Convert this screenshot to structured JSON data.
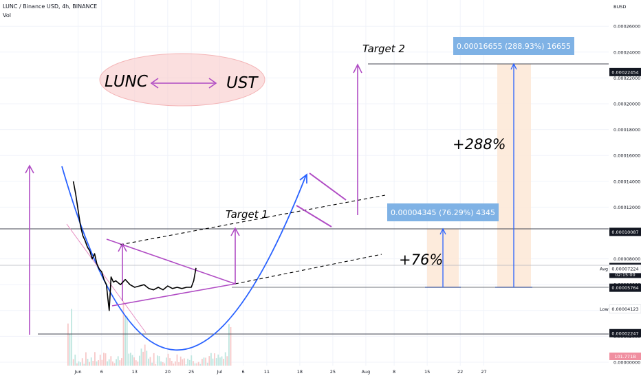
{
  "header": {
    "symbol_line": "LUNC / Binance USD, 4h, BINANCE",
    "volume_label": "Vol",
    "currency": "BUSD"
  },
  "chart_data": {
    "type": "line",
    "title": "LUNC / Binance USD, 4h, BINANCE",
    "xlabel": "",
    "ylabel": "BUSD",
    "ylim": [
      0,
      0.00027
    ],
    "y_ticks": [
      "0.00026000",
      "0.00024000",
      "0.00022000",
      "0.00020000",
      "0.00018000",
      "0.00016000",
      "0.00014000",
      "0.00012000",
      "0.00008000",
      "0.00006000",
      "0.00004000",
      "0.00002000",
      "0.00000000"
    ],
    "x_ticks": [
      "Jun",
      "6",
      "13",
      "20",
      "25",
      "Jul",
      "6",
      "11",
      "18",
      "25",
      "Aug",
      "8",
      "15",
      "22",
      "27"
    ],
    "x_tick_days": [
      1,
      6,
      13,
      20,
      25,
      31,
      36,
      41,
      48,
      55,
      62,
      68,
      75,
      82,
      87
    ],
    "price_series": {
      "name": "",
      "days": [
        0,
        0.5,
        1,
        1.5,
        2,
        2.5,
        3,
        3.5,
        4,
        4.5,
        5,
        5.5,
        6,
        6.5,
        7,
        7.3,
        7.6,
        8,
        8.5,
        9,
        10,
        11,
        12,
        13,
        14,
        15,
        16,
        17,
        18,
        19,
        20,
        21,
        22,
        23,
        24,
        25,
        25.5,
        26
      ],
      "prices": [
        0.00014,
        0.00013,
        0.000118,
        0.000106,
        9.8e-05,
        9.4e-05,
        8.9e-05,
        8.6e-05,
        8e-05,
        8.4e-05,
        7.6e-05,
        7.2e-05,
        7e-05,
        6.4e-05,
        6e-05,
        5e-05,
        4e-05,
        6.6e-05,
        6.2e-05,
        6.3e-05,
        6e-05,
        6.4e-05,
        6e-05,
        5.8e-05,
        5.9e-05,
        6e-05,
        5.7e-05,
        5.6e-05,
        5.8e-05,
        5.6e-05,
        5.9e-05,
        5.7e-05,
        5.8e-05,
        5.7e-05,
        5.8e-05,
        5.8e-05,
        6.3e-05,
        7.3e-05
      ]
    },
    "price_levels": [
      {
        "label": "0.00022454",
        "value": 0.00022454,
        "style": "dark"
      },
      {
        "label": "0.00010087",
        "value": 0.00010087,
        "style": "dark"
      },
      {
        "label": "0.00007366",
        "value": 7.366e-05,
        "style": "dark",
        "sub": "02:15:00"
      },
      {
        "label": "0.00007224",
        "value": 7.224e-05,
        "style": "light",
        "prefix": "Avg"
      },
      {
        "label": "0.00005764",
        "value": 5.764e-05,
        "style": "dark"
      },
      {
        "label": "0.00004123",
        "value": 4.123e-05,
        "style": "light",
        "prefix": "Low"
      },
      {
        "label": "0.00002247",
        "value": 2.247e-05,
        "style": "dark"
      }
    ],
    "volume_label": "101.771B",
    "annotations": {
      "lunc": "LUNC",
      "ust": "UST",
      "target1": "Target 1",
      "target2": "Target 2",
      "pct76": "+76%",
      "pct288": "+288%",
      "measure1": "0.00004345 (76.29%) 4345",
      "measure2": "0.00016655 (288.93%) 16655"
    }
  }
}
